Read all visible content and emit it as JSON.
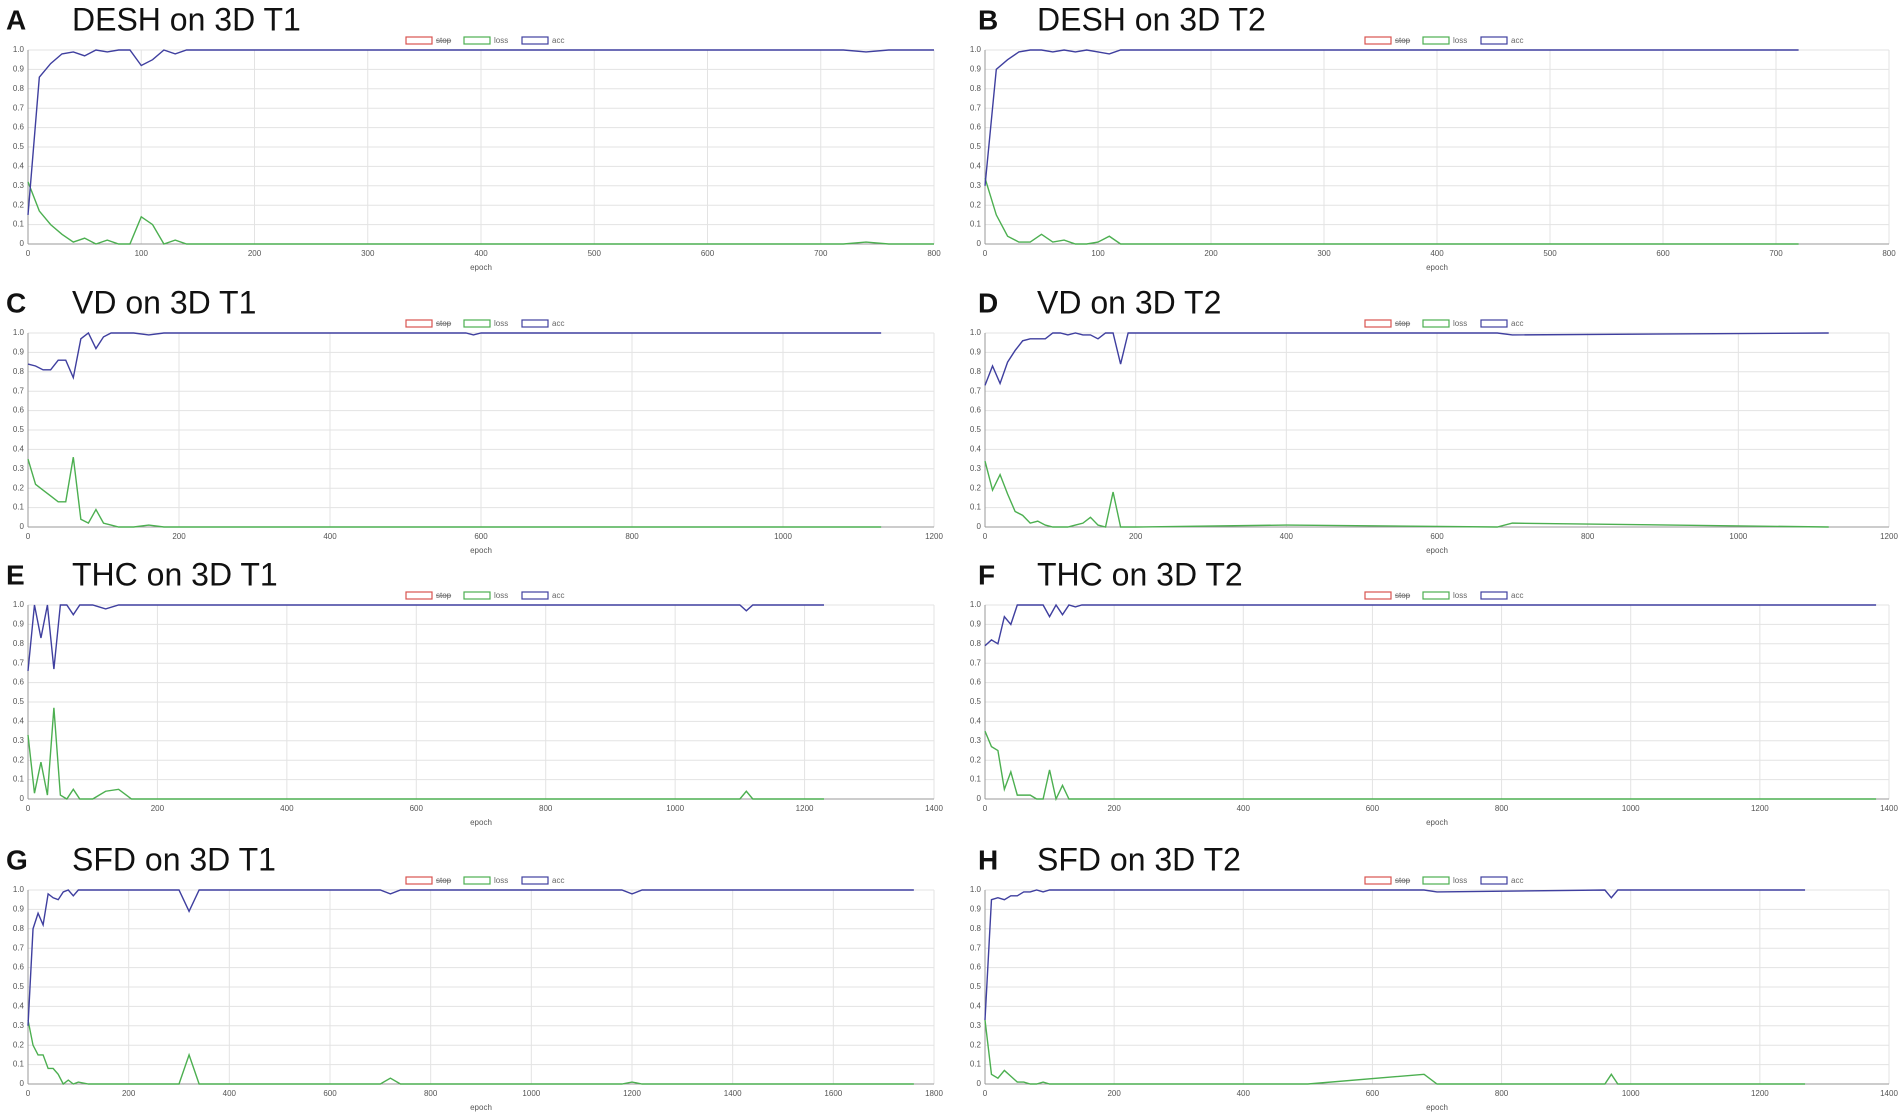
{
  "chart_data": [
    {
      "type": "line",
      "label": "A",
      "title": "DESH on 3D T1",
      "x_label": "epoch",
      "x": [
        0,
        10,
        20,
        30,
        40,
        50,
        60,
        70,
        80,
        90,
        100,
        110,
        120,
        130,
        140,
        200,
        300,
        400,
        500,
        600,
        700,
        720,
        740,
        760,
        800
      ],
      "series": [
        {
          "name": "stop",
          "color": "#d9534f",
          "hidden": true
        },
        {
          "name": "loss",
          "color": "#4caf50",
          "values": [
            0.32,
            0.17,
            0.1,
            0.05,
            0.01,
            0.03,
            0,
            0.02,
            0,
            0,
            0.14,
            0.1,
            0,
            0.02,
            0,
            0,
            0,
            0,
            0,
            0,
            0,
            0,
            0.01,
            0,
            0
          ]
        },
        {
          "name": "acc",
          "color": "#3f3f9f",
          "values": [
            0.15,
            0.86,
            0.93,
            0.98,
            0.99,
            0.97,
            1,
            0.99,
            1,
            1,
            0.92,
            0.95,
            1,
            0.98,
            1,
            1,
            1,
            1,
            1,
            1,
            1,
            1,
            0.99,
            1,
            1
          ]
        }
      ],
      "xlim": [
        0,
        800
      ],
      "xticks": [
        0,
        100,
        200,
        300,
        400,
        500,
        600,
        700,
        800
      ],
      "ylim": [
        0,
        1
      ],
      "yticks": [
        0,
        0.1,
        0.2,
        0.3,
        0.4,
        0.5,
        0.6,
        0.7,
        0.8,
        0.9,
        {
          "value": 1,
          "label": "1.0"
        }
      ],
      "grid": true
    },
    {
      "type": "line",
      "label": "B",
      "title": "DESH on 3D T2",
      "x_label": "epoch",
      "x": [
        0,
        10,
        20,
        30,
        40,
        50,
        60,
        70,
        80,
        90,
        100,
        110,
        120,
        200,
        400,
        600,
        720
      ],
      "series": [
        {
          "name": "stop",
          "color": "#d9534f",
          "hidden": true
        },
        {
          "name": "loss",
          "color": "#4caf50",
          "values": [
            0.34,
            0.15,
            0.04,
            0.01,
            0.01,
            0.05,
            0.01,
            0.02,
            0,
            0,
            0.01,
            0.04,
            0,
            0,
            0,
            0,
            0
          ]
        },
        {
          "name": "acc",
          "color": "#3f3f9f",
          "values": [
            0.3,
            0.9,
            0.95,
            0.99,
            1,
            1,
            0.99,
            1,
            0.99,
            1,
            0.99,
            0.98,
            1,
            1,
            1,
            1,
            1
          ]
        }
      ],
      "xlim": [
        0,
        800
      ],
      "xticks": [
        0,
        100,
        200,
        300,
        400,
        500,
        600,
        700,
        800
      ],
      "ylim": [
        0,
        1
      ],
      "yticks": [
        0,
        0.1,
        0.2,
        0.3,
        0.4,
        0.5,
        0.6,
        0.7,
        0.8,
        0.9,
        {
          "value": 1,
          "label": "1.0"
        }
      ],
      "grid": true
    },
    {
      "type": "line",
      "label": "C",
      "title": "VD on 3D T1",
      "x_label": "epoch",
      "x": [
        0,
        10,
        20,
        30,
        40,
        50,
        60,
        70,
        80,
        90,
        100,
        110,
        120,
        140,
        160,
        180,
        200,
        580,
        590,
        600,
        1130
      ],
      "series": [
        {
          "name": "stop",
          "color": "#d9534f",
          "hidden": true
        },
        {
          "name": "loss",
          "color": "#4caf50",
          "values": [
            0.35,
            0.22,
            0.19,
            0.16,
            0.13,
            0.13,
            0.36,
            0.04,
            0.02,
            0.09,
            0.02,
            0.01,
            0,
            0,
            0.01,
            0,
            0,
            0,
            0,
            0,
            0
          ]
        },
        {
          "name": "acc",
          "color": "#3f3f9f",
          "values": [
            0.84,
            0.83,
            0.81,
            0.81,
            0.86,
            0.86,
            0.77,
            0.97,
            1,
            0.92,
            0.98,
            1,
            1,
            1,
            0.99,
            1,
            1,
            1,
            0.99,
            1,
            1
          ]
        }
      ],
      "xlim": [
        0,
        1200
      ],
      "xticks": [
        0,
        200,
        400,
        600,
        800,
        1000,
        1200
      ],
      "ylim": [
        0,
        1
      ],
      "yticks": [
        0,
        0.1,
        0.2,
        0.3,
        0.4,
        0.5,
        0.6,
        0.7,
        0.8,
        0.9,
        {
          "value": 1,
          "label": "1.0"
        }
      ],
      "grid": true
    },
    {
      "type": "line",
      "label": "D",
      "title": "VD on 3D T2",
      "x_label": "epoch",
      "x": [
        0,
        10,
        20,
        30,
        40,
        50,
        60,
        70,
        80,
        90,
        100,
        110,
        120,
        130,
        140,
        150,
        160,
        170,
        180,
        190,
        200,
        400,
        680,
        700,
        1120
      ],
      "series": [
        {
          "name": "stop",
          "color": "#d9534f",
          "hidden": true
        },
        {
          "name": "loss",
          "color": "#4caf50",
          "values": [
            0.34,
            0.19,
            0.27,
            0.17,
            0.08,
            0.06,
            0.02,
            0.03,
            0.01,
            0,
            0,
            0,
            0.01,
            0.02,
            0.05,
            0.01,
            0,
            0.18,
            0,
            0,
            0,
            0.01,
            0,
            0.02,
            0
          ]
        },
        {
          "name": "acc",
          "color": "#3f3f9f",
          "values": [
            0.73,
            0.83,
            0.74,
            0.85,
            0.91,
            0.96,
            0.97,
            0.97,
            0.97,
            1,
            1,
            0.99,
            1,
            0.99,
            0.99,
            0.97,
            1,
            1,
            0.84,
            1,
            1,
            1,
            1,
            0.99,
            1
          ]
        }
      ],
      "xlim": [
        0,
        1200
      ],
      "xticks": [
        0,
        200,
        400,
        600,
        800,
        1000,
        1200
      ],
      "ylim": [
        0,
        1
      ],
      "yticks": [
        0,
        0.1,
        0.2,
        0.3,
        0.4,
        0.5,
        0.6,
        0.7,
        0.8,
        0.9,
        {
          "value": 1,
          "label": "1.0"
        }
      ],
      "grid": true
    },
    {
      "type": "line",
      "label": "E",
      "title": "THC on 3D T1",
      "x_label": "epoch",
      "x": [
        0,
        10,
        20,
        30,
        40,
        50,
        60,
        70,
        80,
        90,
        100,
        110,
        120,
        140,
        160,
        200,
        800,
        1100,
        1110,
        1120,
        1230
      ],
      "series": [
        {
          "name": "stop",
          "color": "#d9534f",
          "hidden": true
        },
        {
          "name": "loss",
          "color": "#4caf50",
          "values": [
            0.33,
            0.03,
            0.19,
            0.02,
            0.47,
            0.02,
            0,
            0.05,
            0,
            0,
            0,
            0.02,
            0.04,
            0.05,
            0,
            0,
            0,
            0,
            0.04,
            0,
            0
          ]
        },
        {
          "name": "acc",
          "color": "#3f3f9f",
          "values": [
            0.66,
            1,
            0.83,
            1,
            0.67,
            1,
            1,
            0.95,
            1,
            1,
            1,
            0.99,
            0.98,
            1,
            1,
            1,
            1,
            1,
            0.97,
            1,
            1
          ]
        }
      ],
      "xlim": [
        0,
        1400
      ],
      "xticks": [
        0,
        200,
        400,
        600,
        800,
        1000,
        1200,
        1400
      ],
      "ylim": [
        0,
        1
      ],
      "yticks": [
        0,
        0.1,
        0.2,
        0.3,
        0.4,
        0.5,
        0.6,
        0.7,
        0.8,
        0.9,
        {
          "value": 1,
          "label": "1.0"
        }
      ],
      "grid": true
    },
    {
      "type": "line",
      "label": "F",
      "title": "THC on 3D T2",
      "x_label": "epoch",
      "x": [
        0,
        10,
        20,
        30,
        40,
        50,
        60,
        70,
        80,
        90,
        100,
        110,
        120,
        130,
        140,
        150,
        160,
        200,
        1380
      ],
      "series": [
        {
          "name": "stop",
          "color": "#d9534f",
          "hidden": true
        },
        {
          "name": "loss",
          "color": "#4caf50",
          "values": [
            0.35,
            0.27,
            0.25,
            0.05,
            0.14,
            0.02,
            0.02,
            0.02,
            0,
            0,
            0.15,
            0,
            0.07,
            0,
            0,
            0,
            0,
            0,
            0
          ]
        },
        {
          "name": "acc",
          "color": "#3f3f9f",
          "values": [
            0.79,
            0.82,
            0.8,
            0.94,
            0.9,
            1,
            1,
            1,
            1,
            1,
            0.94,
            1,
            0.95,
            1,
            0.99,
            1,
            1,
            1,
            1
          ]
        }
      ],
      "xlim": [
        0,
        1400
      ],
      "xticks": [
        0,
        200,
        400,
        600,
        800,
        1000,
        1200,
        1400
      ],
      "ylim": [
        0,
        1
      ],
      "yticks": [
        0,
        0.1,
        0.2,
        0.3,
        0.4,
        0.5,
        0.6,
        0.7,
        0.8,
        0.9,
        {
          "value": 1,
          "label": "1.0"
        }
      ],
      "grid": true
    },
    {
      "type": "line",
      "label": "G",
      "title": "SFD on 3D T1",
      "x_label": "epoch",
      "x": [
        0,
        10,
        20,
        30,
        40,
        50,
        60,
        70,
        80,
        90,
        100,
        120,
        300,
        320,
        340,
        700,
        720,
        740,
        1180,
        1200,
        1220,
        1760
      ],
      "series": [
        {
          "name": "stop",
          "color": "#d9534f",
          "hidden": true
        },
        {
          "name": "loss",
          "color": "#4caf50",
          "values": [
            0.33,
            0.2,
            0.15,
            0.15,
            0.08,
            0.08,
            0.05,
            0,
            0.02,
            0,
            0.01,
            0,
            0,
            0.15,
            0,
            0,
            0.03,
            0,
            0,
            0.01,
            0,
            0
          ]
        },
        {
          "name": "acc",
          "color": "#3f3f9f",
          "values": [
            0.3,
            0.8,
            0.88,
            0.82,
            0.98,
            0.96,
            0.95,
            0.99,
            1,
            0.97,
            1,
            1,
            1,
            0.89,
            1,
            1,
            0.98,
            1,
            1,
            0.98,
            1,
            1
          ]
        }
      ],
      "xlim": [
        0,
        1800
      ],
      "xticks": [
        0,
        200,
        400,
        600,
        800,
        1000,
        1200,
        1400,
        1600,
        1800
      ],
      "ylim": [
        0,
        1
      ],
      "yticks": [
        0,
        0.1,
        0.2,
        0.3,
        0.4,
        0.5,
        0.6,
        0.7,
        0.8,
        0.9,
        {
          "value": 1,
          "label": "1.0"
        }
      ],
      "grid": true
    },
    {
      "type": "line",
      "label": "H",
      "title": "SFD on 3D T2",
      "x_label": "epoch",
      "x": [
        0,
        10,
        20,
        30,
        40,
        50,
        60,
        70,
        80,
        90,
        100,
        500,
        680,
        700,
        960,
        970,
        980,
        1270
      ],
      "series": [
        {
          "name": "stop",
          "color": "#d9534f",
          "hidden": true
        },
        {
          "name": "loss",
          "color": "#4caf50",
          "values": [
            0.33,
            0.05,
            0.03,
            0.07,
            0.04,
            0.01,
            0.01,
            0,
            0,
            0.01,
            0,
            0,
            0.05,
            0,
            0,
            0.05,
            0,
            0
          ]
        },
        {
          "name": "acc",
          "color": "#3f3f9f",
          "values": [
            0.33,
            0.95,
            0.96,
            0.95,
            0.97,
            0.97,
            0.99,
            0.99,
            1,
            0.99,
            1,
            1,
            1,
            0.99,
            1,
            0.96,
            1,
            1
          ]
        }
      ],
      "xlim": [
        0,
        1400
      ],
      "xticks": [
        0,
        200,
        400,
        600,
        800,
        1000,
        1200,
        1400
      ],
      "ylim": [
        0,
        1
      ],
      "yticks": [
        0,
        0.1,
        0.2,
        0.3,
        0.4,
        0.5,
        0.6,
        0.7,
        0.8,
        0.9,
        {
          "value": 1,
          "label": "1.0"
        }
      ],
      "grid": true
    }
  ]
}
